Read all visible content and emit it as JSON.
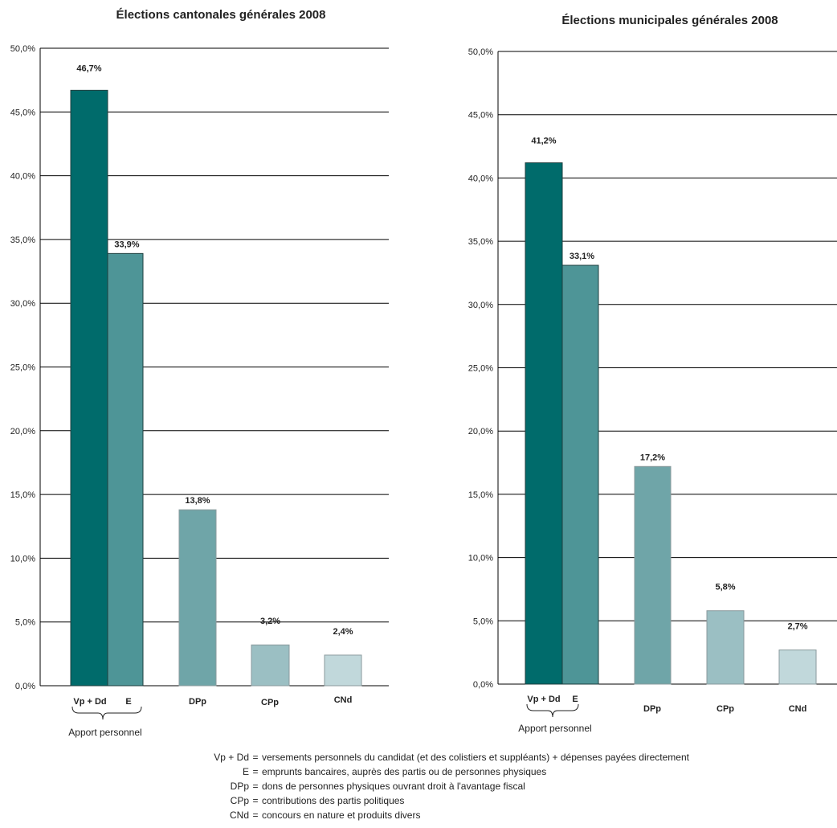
{
  "chart_data": [
    {
      "type": "bar",
      "title": "Élections cantonales générales 2008",
      "categories": [
        "Vp + Dd",
        "E",
        "DPp",
        "CPp",
        "CNd"
      ],
      "values": [
        46.7,
        33.9,
        13.8,
        3.2,
        2.4
      ],
      "data_labels": [
        "46,7%",
        "33,9%",
        "13,8%",
        "3,2%",
        "2,4%"
      ],
      "yticks": [
        "0,0%",
        "5,0%",
        "10,0%",
        "15,0%",
        "20,0%",
        "25,0%",
        "30,0%",
        "35,0%",
        "40,0%",
        "45,0%",
        "50,0%"
      ],
      "ylim": [
        0,
        50
      ],
      "grid": true,
      "group_label": "Apport personnel",
      "colors": [
        "#006b6b",
        "#4e9597",
        "#6fa5a8",
        "#9bbfc3",
        "#c1d8db"
      ]
    },
    {
      "type": "bar",
      "title": "Élections municipales générales 2008",
      "categories": [
        "Vp + Dd",
        "E",
        "DPp",
        "CPp",
        "CNd"
      ],
      "values": [
        41.2,
        33.1,
        17.2,
        5.8,
        2.7
      ],
      "data_labels": [
        "41,2%",
        "33,1%",
        "17,2%",
        "5,8%",
        "2,7%"
      ],
      "yticks": [
        "0,0%",
        "5,0%",
        "10,0%",
        "15,0%",
        "20,0%",
        "25,0%",
        "30,0%",
        "35,0%",
        "40,0%",
        "45,0%",
        "50,0%"
      ],
      "ylim": [
        0,
        50
      ],
      "grid": true,
      "group_label": "Apport personnel",
      "colors": [
        "#006b6b",
        "#4e9597",
        "#6fa5a8",
        "#9bbfc3",
        "#c1d8db"
      ]
    }
  ],
  "legend": [
    {
      "key": "Vp + Dd",
      "text": "versements personnels du candidat (et des colistiers et suppléants) + dépenses payées directement"
    },
    {
      "key": "E",
      "text": "emprunts bancaires, auprès des partis ou de personnes physiques"
    },
    {
      "key": "DPp",
      "text": "dons de personnes physiques ouvrant droit à l'avantage fiscal"
    },
    {
      "key": "CPp",
      "text": "contributions des partis politiques"
    },
    {
      "key": "CNd",
      "text": "concours en nature et produits divers"
    }
  ]
}
